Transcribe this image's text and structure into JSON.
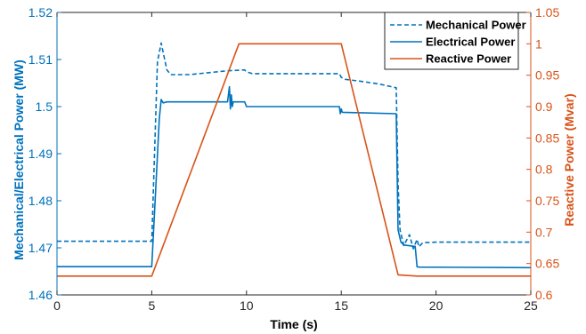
{
  "chart_data": {
    "type": "line",
    "xlabel": "Time (s)",
    "ylabel_left": "Mechanical/Electrical Power (MW)",
    "ylabel_right": "Reactive Power (Mvar)",
    "xlim": [
      0,
      25
    ],
    "ylim_left": [
      1.46,
      1.52
    ],
    "ylim_right": [
      0.6,
      1.05
    ],
    "x_ticks": [
      0,
      5,
      10,
      15,
      20,
      25
    ],
    "x_tick_labels": [
      "0",
      "5",
      "10",
      "15",
      "20",
      "25"
    ],
    "y_left_ticks": [
      1.46,
      1.47,
      1.48,
      1.49,
      1.5,
      1.51,
      1.52
    ],
    "y_left_tick_labels": [
      "1.46",
      "1.47",
      "1.48",
      "1.49",
      "1.5",
      "1.51",
      "1.52"
    ],
    "y_right_ticks": [
      0.6,
      0.65,
      0.7,
      0.75,
      0.8,
      0.85,
      0.9,
      0.95,
      1.0,
      1.05
    ],
    "y_right_tick_labels": [
      "0.6",
      "0.65",
      "0.7",
      "0.75",
      "0.8",
      "0.85",
      "0.9",
      "0.95",
      "1",
      "1.05"
    ],
    "legend_position": "top-right",
    "colors": {
      "left_axis": "#0072BD",
      "right_axis": "#D95319"
    },
    "series": [
      {
        "name": "Mechanical Power",
        "axis": "left",
        "style": "dashed",
        "color": "#0072BD",
        "x": [
          0,
          5.0,
          5.3,
          5.5,
          5.6,
          5.8,
          6.0,
          6.5,
          7.0,
          8.0,
          9.0,
          9.9,
          10.0,
          10.3,
          11.0,
          12.0,
          13.0,
          14.0,
          14.9,
          15.0,
          15.2,
          16.0,
          17.0,
          17.9,
          18.0,
          18.1,
          18.3,
          18.6,
          18.8,
          19.0,
          19.1,
          19.3,
          20.0,
          22.0,
          25.0
        ],
        "y": [
          1.4714,
          1.4714,
          1.5095,
          1.5135,
          1.5115,
          1.5078,
          1.5068,
          1.5068,
          1.5068,
          1.5072,
          1.5076,
          1.5078,
          1.5074,
          1.507,
          1.507,
          1.507,
          1.507,
          1.507,
          1.507,
          1.5062,
          1.5058,
          1.5054,
          1.5048,
          1.504,
          1.4835,
          1.4738,
          1.4705,
          1.4728,
          1.4698,
          1.4718,
          1.4702,
          1.4711,
          1.4712,
          1.4712,
          1.4712
        ]
      },
      {
        "name": "Electrical Power",
        "axis": "left",
        "style": "solid",
        "color": "#0072BD",
        "x": [
          0,
          5.0,
          5.4,
          5.5,
          5.6,
          5.8,
          7.0,
          9.0,
          9.1,
          9.15,
          9.2,
          9.25,
          9.3,
          9.4,
          9.9,
          10.0,
          11.0,
          14.0,
          14.9,
          14.95,
          15.0,
          15.05,
          16.0,
          17.9,
          18.0,
          18.15,
          18.3,
          18.9,
          19.0,
          19.1,
          25.0
        ],
        "y": [
          1.466,
          1.466,
          1.4975,
          1.5015,
          1.5008,
          1.501,
          1.501,
          1.501,
          1.5042,
          1.4995,
          1.5025,
          1.5,
          1.501,
          1.501,
          1.501,
          1.5,
          1.5,
          1.5,
          1.5,
          1.4985,
          1.4995,
          1.4988,
          1.4987,
          1.4985,
          1.4738,
          1.4712,
          1.4706,
          1.4703,
          1.466,
          1.4659,
          1.4658
        ]
      },
      {
        "name": "Reactive Power",
        "axis": "right",
        "style": "solid",
        "color": "#D95319",
        "x": [
          0,
          5.0,
          9.6,
          15.0,
          18.0,
          19.0,
          25.0
        ],
        "y": [
          0.63,
          0.63,
          1.0,
          1.0,
          0.632,
          0.63,
          0.63
        ]
      }
    ]
  }
}
